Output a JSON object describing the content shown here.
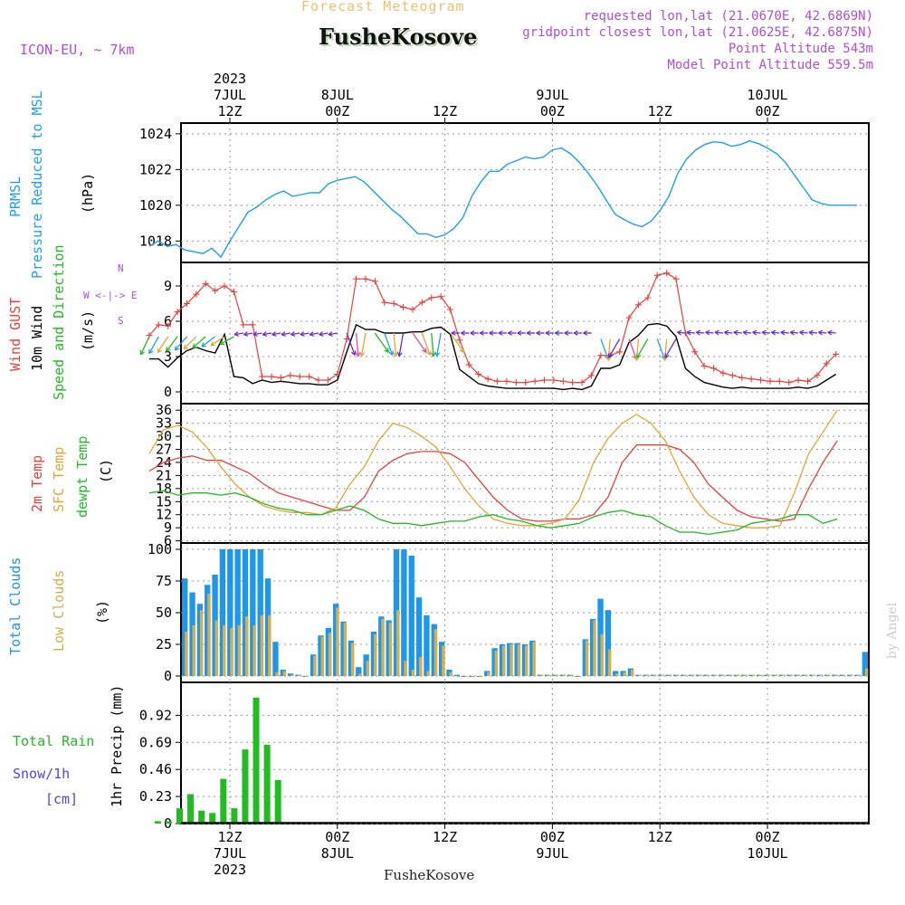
{
  "header": {
    "subtitle": "Forecast Meteogram",
    "title": "FusheKosove",
    "model": "ICON-EU, ~ 7km",
    "requested": "requested lon,lat (21.0670E, 42.6869N)",
    "gridpoint": "gridpoint closest lon,lat (21.0625E, 42.6875N)",
    "point_altitude": "Point Altitude 543m",
    "model_altitude": "Model Point Altitude 559.5m",
    "footer_name": "FusheKosove",
    "watermark": "by Angel"
  },
  "colors": {
    "pressure": "#1ea0ec",
    "gust": "#e8413c",
    "wind": "#000000",
    "temp": "#e8413c",
    "sfc_temp": "#e3a634",
    "dewpt": "#22bb22",
    "total_cloud": "#1e96ec",
    "low_cloud": "#d6ae4a",
    "rain": "#22bb22",
    "snow": "#4a4adf",
    "legend_purple": "#b04fd0",
    "orange_title": "#f0c070"
  },
  "time_axis": {
    "top_year": "2023",
    "top_labels": [
      {
        "h": 12,
        "l1": "7JUL",
        "l2": "12Z"
      },
      {
        "h": 24,
        "l1": "8JUL",
        "l2": "00Z"
      },
      {
        "h": 36,
        "l1": "",
        "l2": "12Z"
      },
      {
        "h": 48,
        "l1": "9JUL",
        "l2": "00Z"
      },
      {
        "h": 60,
        "l1": "",
        "l2": "12Z"
      },
      {
        "h": 72,
        "l1": "10JUL",
        "l2": "00Z"
      }
    ],
    "bottom_labels": [
      {
        "h": 12,
        "l1": "12Z",
        "l2": "7JUL",
        "l3": "2023"
      },
      {
        "h": 24,
        "l1": "00Z",
        "l2": "8JUL",
        "l3": ""
      },
      {
        "h": 36,
        "l1": "12Z",
        "l2": "",
        "l3": ""
      },
      {
        "h": 48,
        "l1": "00Z",
        "l2": "9JUL",
        "l3": ""
      },
      {
        "h": 60,
        "l1": "12Z",
        "l2": "",
        "l3": ""
      },
      {
        "h": 72,
        "l1": "00Z",
        "l2": "10JUL",
        "l3": ""
      }
    ]
  },
  "panel_labels": {
    "pressure": [
      "PRMSL",
      "Pressure Reduced to MSL",
      "(hPa)"
    ],
    "wind": [
      "Wind GUST",
      "10m Wind",
      "Speed and Direction",
      "(m/s)"
    ],
    "compass": [
      "N",
      "W <-|-> E",
      "S"
    ],
    "temp": [
      "2m Temp",
      "SFC Temp",
      "dewpt Temp",
      "(C)"
    ],
    "clouds": [
      "Total Clouds",
      "Low Clouds",
      "(%)"
    ],
    "precip": [
      "Total Rain",
      "Snow/1h",
      "[cm]",
      "1hr Precip (mm)"
    ]
  },
  "chart_data": [
    {
      "type": "line",
      "name": "pressure",
      "ylabel": "(hPa)",
      "ylim": [
        1016.8,
        1024.6
      ],
      "yticks": [
        "1018",
        "1020",
        "1022",
        "1024"
      ],
      "series": [
        {
          "name": "PRMSL",
          "x": [
            0,
            1,
            2,
            3,
            4,
            5,
            6,
            7,
            8,
            9,
            10,
            11,
            12,
            13,
            14,
            15,
            16,
            17,
            18,
            19,
            20,
            21,
            22,
            23,
            24,
            25,
            26,
            27,
            28,
            29,
            30,
            31,
            32,
            33,
            34,
            35,
            36,
            37,
            38,
            39,
            40,
            41,
            42,
            43,
            44,
            45,
            46,
            47,
            48,
            49,
            50,
            51,
            52,
            53,
            54,
            55,
            56,
            57,
            58,
            59,
            60,
            61,
            62,
            63,
            64,
            65,
            66,
            67,
            68,
            69,
            70,
            71,
            72,
            73,
            74,
            75,
            76,
            77,
            78,
            79
          ],
          "values": [
            1017.7,
            1018,
            1017.7,
            1017.8,
            1017.5,
            1017.4,
            1017.3,
            1017.6,
            1017.1,
            1018,
            1018.8,
            1019.6,
            1019.9,
            1020.3,
            1020.6,
            1020.8,
            1020.5,
            1020.6,
            1020.7,
            1020.7,
            1021.2,
            1021.4,
            1021.5,
            1021.6,
            1021.3,
            1020.8,
            1020.3,
            1019.8,
            1019.4,
            1018.9,
            1018.4,
            1018.4,
            1018.2,
            1018.35,
            1018.7,
            1019.3,
            1020.5,
            1021.3,
            1021.9,
            1021.9,
            1022.3,
            1022.5,
            1022.7,
            1022.6,
            1022.7,
            1023.1,
            1023.2,
            1022.9,
            1022.4,
            1021.8,
            1021.1,
            1020.3,
            1019.5,
            1019.2,
            1018.95,
            1018.8,
            1019.1,
            1019.7,
            1020.5,
            1021.8,
            1022.6,
            1023.1,
            1023.4,
            1023.55,
            1023.5,
            1023.3,
            1023.4,
            1023.6,
            1023.45,
            1023.2,
            1022.9,
            1022.4,
            1021.7,
            1021,
            1020.3,
            1020.1,
            1020.0,
            1020.0,
            1020.0,
            1020.0
          ]
        }
      ]
    },
    {
      "type": "line",
      "name": "wind",
      "ylabel": "(m/s)",
      "ylim": [
        -1,
        11
      ],
      "yticks": [
        "0",
        "3",
        "6",
        "9"
      ],
      "series": [
        {
          "name": "Wind GUST",
          "values": [
            4.8,
            5.7,
            5.6,
            6.8,
            7.5,
            8.3,
            9.2,
            8.6,
            9.0,
            8.5,
            5.7,
            5.7,
            1.3,
            1.3,
            1.2,
            1.4,
            1.3,
            1.3,
            1.0,
            1.0,
            1.5,
            4.5,
            9.6,
            9.6,
            9.4,
            7.6,
            7.5,
            7.2,
            7.0,
            7.6,
            8.0,
            8.1,
            7.0,
            4.4,
            2.3,
            1.5,
            1.1,
            0.9,
            0.9,
            0.8,
            0.8,
            0.9,
            1.0,
            1.0,
            0.9,
            0.8,
            0.8,
            1.4,
            3.1,
            3.1,
            3.4,
            6.3,
            7.4,
            8.0,
            9.9,
            10.1,
            9.6,
            5.0,
            3.4,
            2.2,
            2.0,
            1.6,
            1.4,
            1.2,
            1.1,
            1.0,
            0.9,
            0.9,
            0.8,
            1.0,
            0.9,
            1.4,
            2.4,
            3.2
          ]
        },
        {
          "name": "10m Wind",
          "values": [
            2.8,
            2.8,
            2.1,
            2.9,
            3.5,
            3.8,
            3.5,
            3.3,
            4.9,
            1.3,
            1.2,
            0.7,
            1.0,
            0.8,
            0.9,
            0.8,
            0.7,
            0.7,
            0.6,
            0.6,
            1.0,
            3.4,
            5.7,
            5.3,
            5.3,
            5.0,
            5.0,
            5.0,
            5.1,
            5.1,
            5.4,
            5.5,
            4.9,
            1.9,
            1.3,
            0.7,
            0.5,
            0.4,
            0.3,
            0.3,
            0.3,
            0.3,
            0.3,
            0.3,
            0.2,
            0.3,
            0.2,
            0.5,
            2.0,
            2.0,
            2.3,
            4.2,
            4.8,
            5.7,
            5.8,
            5.6,
            4.7,
            2.0,
            1.3,
            0.8,
            0.6,
            0.4,
            0.3,
            0.4,
            0.3,
            0.3,
            0.3,
            0.3,
            0.3,
            0.4,
            0.3,
            0.5,
            1.0,
            1.5
          ]
        }
      ]
    },
    {
      "type": "line",
      "name": "temperature",
      "ylabel": "(C)",
      "ylim": [
        5.5,
        37.5
      ],
      "yticks": [
        "6",
        "9",
        "12",
        "15",
        "18",
        "21",
        "24",
        "27",
        "30",
        "33",
        "36"
      ],
      "series": [
        {
          "name": "2m Temp",
          "values": [
            22,
            24,
            25,
            25.5,
            24.5,
            24.5,
            23,
            21.5,
            19,
            17,
            16,
            15,
            14,
            13,
            13,
            16,
            22,
            24.5,
            26,
            26.5,
            26.5,
            26,
            24,
            20,
            16,
            13,
            11,
            10.5,
            10.5,
            11,
            11,
            12,
            16,
            24,
            28,
            28,
            28,
            27,
            24,
            19,
            16,
            13,
            11.5,
            11,
            10.5,
            11,
            18,
            24,
            29
          ]
        },
        {
          "name": "SFC Temp",
          "values": [
            26,
            31.5,
            32.5,
            31,
            27.5,
            23,
            19,
            16,
            14,
            13,
            12.5,
            12.5,
            12,
            13.5,
            19,
            23,
            29,
            33,
            32,
            30,
            27.5,
            23,
            18,
            14,
            11,
            10,
            9.5,
            9.5,
            10,
            11,
            15.5,
            24,
            29.5,
            33,
            35,
            33,
            29,
            22,
            16,
            12,
            10,
            9.5,
            9,
            9,
            9.5,
            17,
            26,
            31,
            36
          ]
        },
        {
          "name": "dewpt Temp",
          "values": [
            17,
            17.5,
            16.5,
            17,
            17,
            16.5,
            17,
            16,
            14.5,
            13.5,
            13,
            12,
            12,
            13,
            14,
            13,
            11,
            10,
            10,
            9.5,
            10,
            10.5,
            10.5,
            11.5,
            12,
            11,
            10.5,
            9.5,
            9,
            9.5,
            10,
            11.5,
            12.5,
            13,
            12,
            11.5,
            9.5,
            8,
            8,
            7.5,
            8,
            8.5,
            10,
            10.5,
            11,
            12,
            12,
            10,
            11
          ]
        }
      ]
    },
    {
      "type": "bar",
      "name": "clouds",
      "ylabel": "(%)",
      "ylim": [
        -5,
        105
      ],
      "yticks": [
        "0",
        "25",
        "50",
        "75",
        "100"
      ],
      "series": [
        {
          "name": "Total Clouds",
          "values": [
            77,
            66,
            57,
            72,
            80,
            100,
            100,
            100,
            100,
            100,
            100,
            77,
            27,
            5,
            2,
            1,
            0,
            17,
            32,
            38,
            57,
            43,
            28,
            7,
            17,
            35,
            47,
            44,
            100,
            100,
            95,
            62,
            48,
            41,
            27,
            5,
            1,
            0,
            0,
            0,
            4,
            22,
            25,
            26,
            26,
            25,
            28,
            1,
            1,
            1,
            1,
            1,
            0,
            29,
            45,
            61,
            52,
            4,
            4,
            6,
            1,
            1,
            1,
            1,
            1,
            1,
            1,
            1,
            1,
            1,
            1,
            1,
            1,
            1,
            1,
            1,
            1,
            1,
            1,
            1,
            1,
            1,
            1,
            1,
            1,
            1,
            1,
            1,
            1,
            1,
            19
          ]
        },
        {
          "name": "Low Clouds",
          "values": [
            35,
            40,
            52,
            65,
            44,
            40,
            38,
            40,
            47,
            40,
            48,
            48,
            3,
            4,
            1,
            1,
            0,
            16,
            31,
            34,
            54,
            42,
            26,
            2,
            12,
            33,
            45,
            42,
            52,
            12,
            5,
            15,
            4,
            37,
            24,
            3,
            0,
            0,
            0,
            0,
            3,
            20,
            24,
            25,
            25,
            24,
            27,
            1,
            1,
            1,
            1,
            1,
            0,
            28,
            44,
            33,
            21,
            2,
            3,
            5,
            1,
            1,
            1,
            1,
            1,
            1,
            1,
            1,
            1,
            1,
            1,
            1,
            1,
            1,
            1,
            1,
            1,
            1,
            1,
            1,
            1,
            1,
            1,
            1,
            1,
            1,
            1,
            1,
            1,
            1,
            6
          ]
        }
      ]
    },
    {
      "type": "bar",
      "name": "precipitation",
      "ylabel": "1hr Precip (mm)",
      "ylim": [
        0,
        1.2
      ],
      "yticks": [
        "0",
        "0.23",
        "0.46",
        "0.69",
        "0.92"
      ],
      "series": [
        {
          "name": "Total Rain",
          "values": [
            0.02,
            0.02,
            0.13,
            0.25,
            0.11,
            0.09,
            0.38,
            0.13,
            0.63,
            1.07,
            0.67,
            0.37
          ]
        }
      ]
    }
  ]
}
